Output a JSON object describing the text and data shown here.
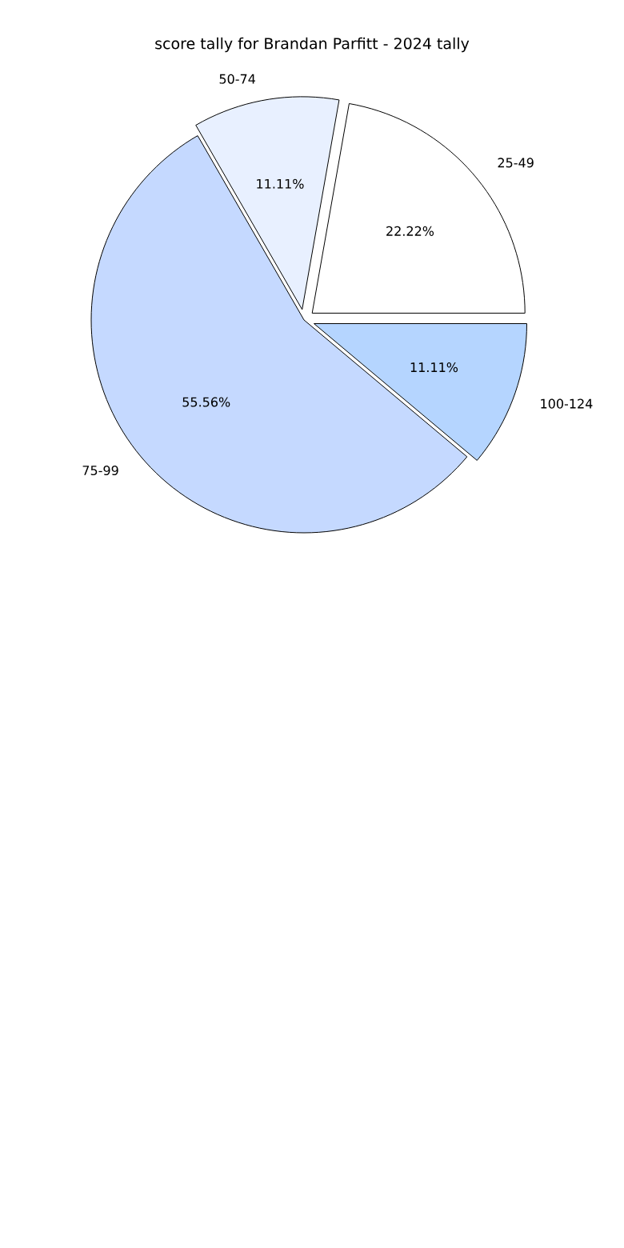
{
  "chart_data": {
    "type": "pie",
    "title": "score tally for Brandan Parfitt - 2024 tally",
    "categories": [
      "25-49",
      "50-74",
      "75-99",
      "100-124"
    ],
    "values": [
      22.22,
      11.11,
      55.56,
      11.11
    ],
    "value_labels": [
      "22.22%",
      "11.11%",
      "55.56%",
      "11.11%"
    ],
    "colors": [
      "#ffffff",
      "#e8f0ff",
      "#c5d9ff",
      "#b5d5ff"
    ]
  }
}
